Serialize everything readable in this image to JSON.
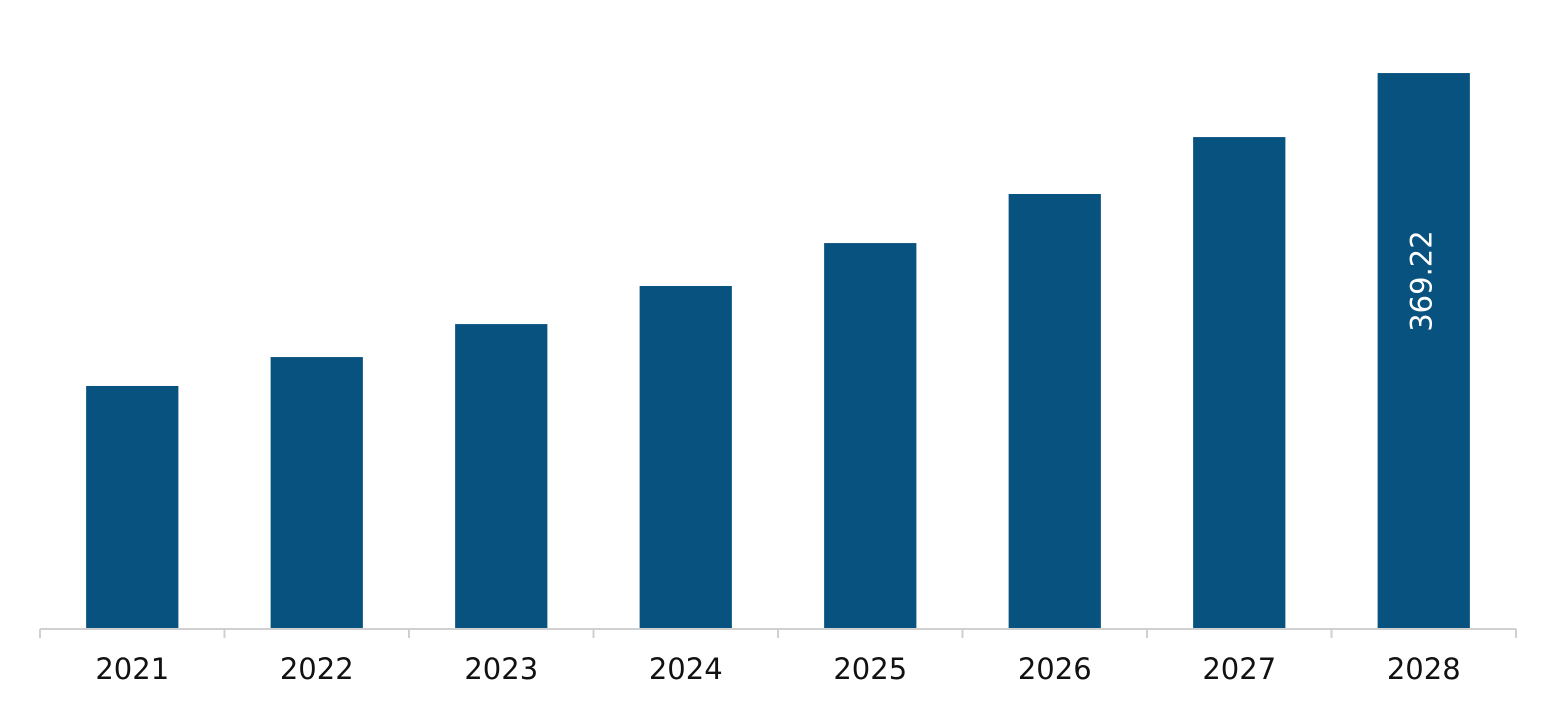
{
  "chart_data": {
    "type": "bar",
    "categories": [
      "2021",
      "2022",
      "2023",
      "2024",
      "2025",
      "2026",
      "2027",
      "2028"
    ],
    "values": [
      161.4,
      180.6,
      202.5,
      227.8,
      256.3,
      288.9,
      326.7,
      369.22
    ],
    "value_labels": [
      null,
      null,
      null,
      null,
      null,
      null,
      null,
      "369.22"
    ],
    "color": "#08527f",
    "ylim": [
      0,
      400
    ]
  }
}
